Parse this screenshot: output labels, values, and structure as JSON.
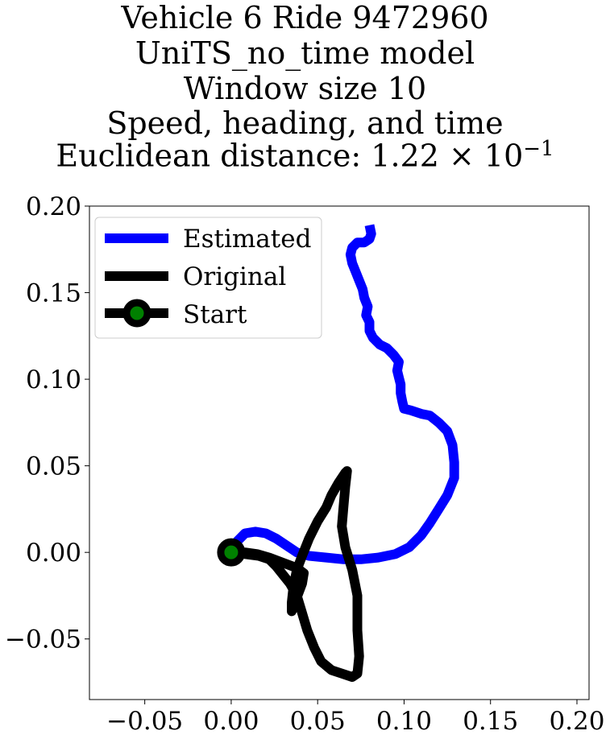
{
  "chart_data": {
    "type": "line",
    "title_lines": [
      "Vehicle 6 Ride 9472960",
      "UniTS_no_time model",
      "Window size 10",
      "Speed, heading, and time"
    ],
    "title_last_prefix": "Euclidean distance: 1.22",
    "title_last_times": "×",
    "title_last_base": "10",
    "title_last_exp": "−1",
    "xlim": [
      -0.082,
      0.207
    ],
    "ylim": [
      -0.085,
      0.2
    ],
    "xticks": [
      -0.05,
      0.0,
      0.05,
      0.1,
      0.15,
      0.2
    ],
    "xtick_labels": [
      "−0.05",
      "0.00",
      "0.05",
      "0.10",
      "0.15",
      "0.20"
    ],
    "yticks": [
      -0.05,
      0.0,
      0.05,
      0.1,
      0.15,
      0.2
    ],
    "ytick_labels": [
      "−0.05",
      "0.00",
      "0.05",
      "0.10",
      "0.15",
      "0.20"
    ],
    "grid": false,
    "legend_position": "upper-left",
    "series": [
      {
        "name": "Estimated",
        "color": "#0000ff",
        "points": [
          [
            0.0,
            0.0
          ],
          [
            0.003,
            0.006
          ],
          [
            0.008,
            0.011
          ],
          [
            0.014,
            0.012
          ],
          [
            0.02,
            0.011
          ],
          [
            0.026,
            0.008
          ],
          [
            0.032,
            0.004
          ],
          [
            0.038,
            0.0
          ],
          [
            0.045,
            -0.002
          ],
          [
            0.055,
            -0.003
          ],
          [
            0.065,
            -0.004
          ],
          [
            0.075,
            -0.004
          ],
          [
            0.085,
            -0.003
          ],
          [
            0.095,
            -0.001
          ],
          [
            0.103,
            0.003
          ],
          [
            0.11,
            0.01
          ],
          [
            0.115,
            0.017
          ],
          [
            0.12,
            0.025
          ],
          [
            0.125,
            0.033
          ],
          [
            0.129,
            0.043
          ],
          [
            0.129,
            0.052
          ],
          [
            0.128,
            0.062
          ],
          [
            0.125,
            0.07
          ],
          [
            0.12,
            0.075
          ],
          [
            0.115,
            0.079
          ],
          [
            0.11,
            0.08
          ],
          [
            0.104,
            0.082
          ],
          [
            0.1,
            0.083
          ],
          [
            0.099,
            0.087
          ],
          [
            0.098,
            0.092
          ],
          [
            0.098,
            0.097
          ],
          [
            0.097,
            0.101
          ],
          [
            0.096,
            0.105
          ],
          [
            0.097,
            0.11
          ],
          [
            0.094,
            0.114
          ],
          [
            0.09,
            0.118
          ],
          [
            0.086,
            0.12
          ],
          [
            0.082,
            0.124
          ],
          [
            0.08,
            0.128
          ],
          [
            0.08,
            0.133
          ],
          [
            0.078,
            0.137
          ],
          [
            0.079,
            0.142
          ],
          [
            0.077,
            0.147
          ],
          [
            0.076,
            0.152
          ],
          [
            0.074,
            0.157
          ],
          [
            0.072,
            0.162
          ],
          [
            0.07,
            0.167
          ],
          [
            0.069,
            0.172
          ],
          [
            0.07,
            0.176
          ],
          [
            0.073,
            0.179
          ],
          [
            0.077,
            0.179
          ],
          [
            0.08,
            0.181
          ],
          [
            0.081,
            0.184
          ],
          [
            0.08,
            0.189
          ]
        ]
      },
      {
        "name": "Original",
        "color": "#000000",
        "points": [
          [
            0.0,
            0.0
          ],
          [
            0.008,
            0.0
          ],
          [
            0.015,
            -0.001
          ],
          [
            0.022,
            -0.003
          ],
          [
            0.03,
            -0.006
          ],
          [
            0.038,
            -0.009
          ],
          [
            0.042,
            -0.012
          ],
          [
            0.041,
            -0.018
          ],
          [
            0.038,
            -0.026
          ],
          [
            0.036,
            -0.032
          ],
          [
            0.035,
            -0.034
          ],
          [
            0.035,
            -0.029
          ],
          [
            0.036,
            -0.02
          ],
          [
            0.038,
            -0.01
          ],
          [
            0.041,
            -0.002
          ],
          [
            0.045,
            0.008
          ],
          [
            0.05,
            0.018
          ],
          [
            0.055,
            0.026
          ],
          [
            0.058,
            0.033
          ],
          [
            0.062,
            0.04
          ],
          [
            0.066,
            0.046
          ],
          [
            0.067,
            0.047
          ],
          [
            0.066,
            0.038
          ],
          [
            0.065,
            0.027
          ],
          [
            0.064,
            0.015
          ],
          [
            0.066,
            0.003
          ],
          [
            0.07,
            -0.01
          ],
          [
            0.073,
            -0.025
          ],
          [
            0.073,
            -0.045
          ],
          [
            0.074,
            -0.06
          ],
          [
            0.073,
            -0.07
          ],
          [
            0.07,
            -0.072
          ],
          [
            0.064,
            -0.07
          ],
          [
            0.058,
            -0.068
          ],
          [
            0.052,
            -0.063
          ],
          [
            0.048,
            -0.055
          ],
          [
            0.044,
            -0.045
          ],
          [
            0.041,
            -0.035
          ],
          [
            0.038,
            -0.025
          ],
          [
            0.034,
            -0.018
          ],
          [
            0.03,
            -0.013
          ],
          [
            0.026,
            -0.008
          ],
          [
            0.022,
            -0.004
          ],
          [
            0.016,
            -0.002
          ],
          [
            0.008,
            -0.001
          ],
          [
            0.0,
            0.0
          ]
        ]
      }
    ],
    "start_marker": {
      "name": "Start",
      "point": [
        0.0,
        0.0
      ],
      "fill_color": "#008000",
      "edge_color": "#000000"
    }
  }
}
